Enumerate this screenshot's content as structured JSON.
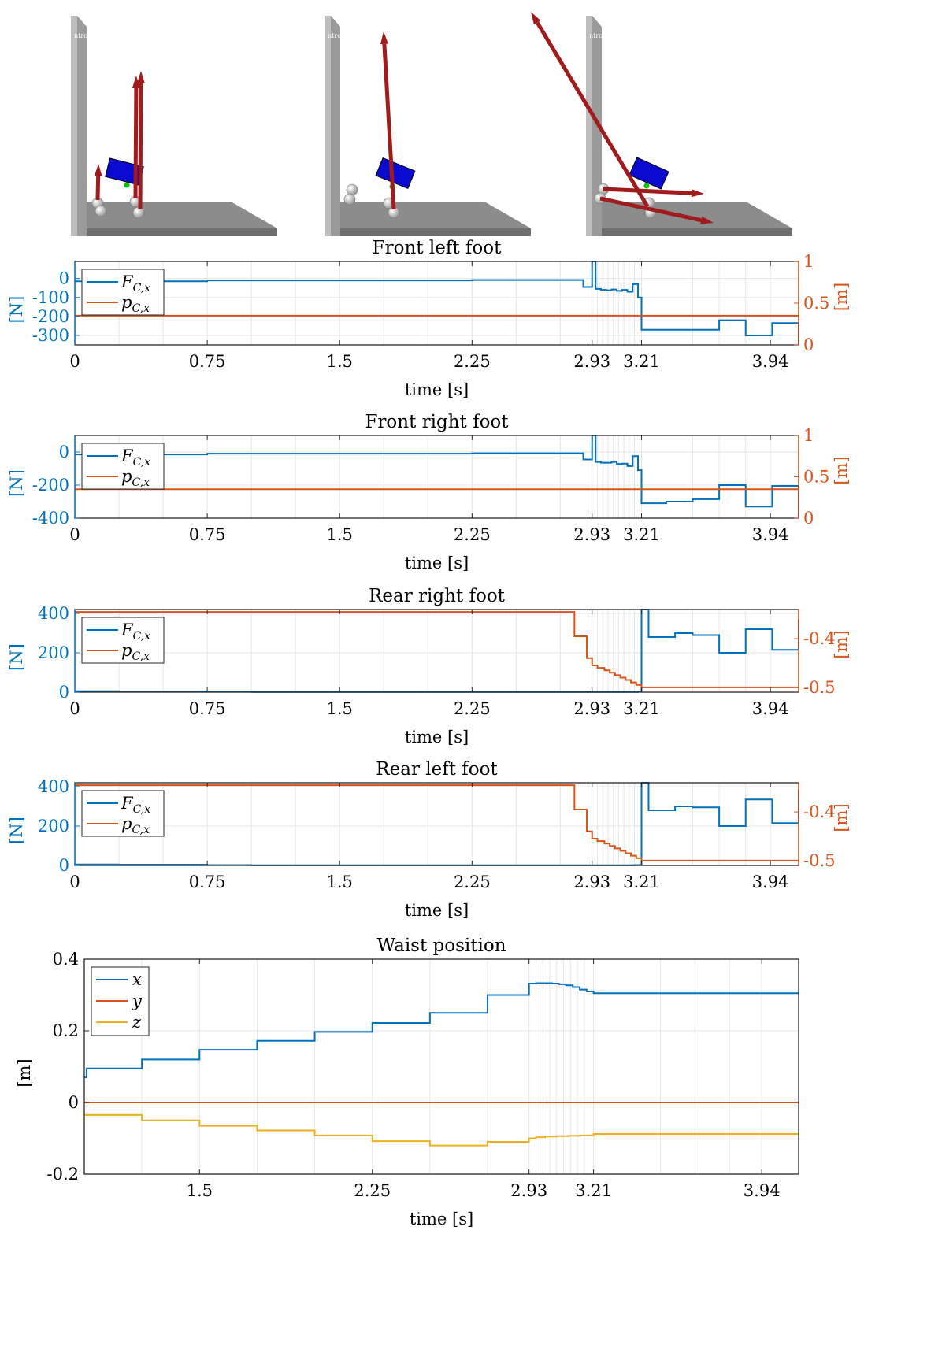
{
  "colors": {
    "blue": "#0072BD",
    "orange": "#D95319",
    "yellow": "#EDB120",
    "floor": "#8c8c8c",
    "wall": "#9a9a9a",
    "body": "#0a0ad0",
    "arrow": "#a01b1b",
    "feet": "#e8e8e8",
    "com": "#00c000"
  },
  "snapshots": [
    {
      "name": "snapshot-1",
      "wall_label": "ntro ROT"
    },
    {
      "name": "snapshot-2",
      "wall_label": "ntro ROT"
    },
    {
      "name": "snapshot-3",
      "wall_label": "ntro ROT"
    }
  ],
  "chart_data": [
    {
      "type": "line",
      "title": "Front left foot",
      "xlabel": "time [s]",
      "ylabel_left": "[N]",
      "ylabel_right": "[m]",
      "xlim": [
        0,
        4.1
      ],
      "xticks": [
        0,
        0.75,
        1.5,
        2.25,
        2.93,
        3.21,
        3.94
      ],
      "xtick_labels": [
        "0",
        "0.75",
        "1.5",
        "2.25",
        "2.93",
        "3.21",
        "3.94"
      ],
      "ylim_left": [
        -350,
        90
      ],
      "yticks_left": [
        0,
        -100,
        -200,
        -300
      ],
      "ytick_labels_left": [
        "0",
        "-100",
        "-200",
        "-300"
      ],
      "ylim_right": [
        0,
        1
      ],
      "yticks_right": [
        0,
        0.5,
        1
      ],
      "ytick_labels_right": [
        "0",
        "0.5",
        "1"
      ],
      "legend": {
        "location": "top-left",
        "entries": [
          "F_C,x",
          "p_C,x"
        ]
      },
      "series": [
        {
          "name": "F_C,x",
          "axis": "left",
          "color": "blue",
          "step": true,
          "x": [
            0,
            0.25,
            0.5,
            0.75,
            1.0,
            1.25,
            1.5,
            1.75,
            2.0,
            2.25,
            2.5,
            2.75,
            2.88,
            2.91,
            2.93,
            2.95,
            2.98,
            3.01,
            3.04,
            3.07,
            3.1,
            3.13,
            3.16,
            3.19,
            3.21,
            3.5,
            3.65,
            3.8,
            3.95,
            4.1
          ],
          "y": [
            -15,
            -15,
            -15,
            -10,
            -10,
            -10,
            -10,
            -10,
            -10,
            -8,
            -8,
            -8,
            -45,
            -45,
            90,
            -55,
            -60,
            -62,
            -58,
            -65,
            -60,
            -70,
            -30,
            -100,
            -270,
            -270,
            -220,
            -300,
            -235,
            -345
          ]
        },
        {
          "name": "p_C,x",
          "axis": "right",
          "color": "orange",
          "step": true,
          "x": [
            0,
            4.1
          ],
          "y": [
            0.35,
            0.35
          ]
        }
      ]
    },
    {
      "type": "line",
      "title": "Front right foot",
      "xlabel": "time [s]",
      "ylabel_left": "[N]",
      "ylabel_right": "[m]",
      "xlim": [
        0,
        4.1
      ],
      "xticks": [
        0,
        0.75,
        1.5,
        2.25,
        2.93,
        3.21,
        3.94
      ],
      "xtick_labels": [
        "0",
        "0.75",
        "1.5",
        "2.25",
        "2.93",
        "3.21",
        "3.94"
      ],
      "ylim_left": [
        -400,
        100
      ],
      "yticks_left": [
        0,
        -200,
        -400
      ],
      "ytick_labels_left": [
        "0",
        "-200",
        "-400"
      ],
      "ylim_right": [
        0,
        1
      ],
      "yticks_right": [
        0,
        0.5,
        1
      ],
      "ytick_labels_right": [
        "0",
        "0.5",
        "1"
      ],
      "legend": {
        "location": "top-left",
        "entries": [
          "F_C,x",
          "p_C,x"
        ]
      },
      "series": [
        {
          "name": "F_C,x",
          "axis": "left",
          "color": "blue",
          "step": true,
          "x": [
            0,
            0.25,
            0.5,
            0.75,
            1.0,
            1.25,
            1.5,
            1.75,
            2.0,
            2.25,
            2.5,
            2.75,
            2.88,
            2.91,
            2.93,
            2.95,
            2.98,
            3.01,
            3.04,
            3.07,
            3.1,
            3.13,
            3.16,
            3.19,
            3.21,
            3.35,
            3.5,
            3.65,
            3.8,
            3.95,
            4.1
          ],
          "y": [
            -15,
            -15,
            -15,
            -10,
            -10,
            -10,
            -10,
            -10,
            -10,
            -8,
            -8,
            -8,
            -45,
            -45,
            100,
            -60,
            -65,
            -65,
            -60,
            -72,
            -70,
            -85,
            -25,
            -110,
            -310,
            -300,
            -285,
            -200,
            -330,
            -205,
            -390
          ]
        },
        {
          "name": "p_C,x",
          "axis": "right",
          "color": "orange",
          "step": true,
          "x": [
            0,
            4.1
          ],
          "y": [
            0.35,
            0.35
          ]
        }
      ]
    },
    {
      "type": "line",
      "title": "Rear right foot",
      "xlabel": "time [s]",
      "ylabel_left": "[N]",
      "ylabel_right": "[m]",
      "xlim": [
        0,
        4.1
      ],
      "xticks": [
        0,
        0.75,
        1.5,
        2.25,
        2.93,
        3.21,
        3.94
      ],
      "xtick_labels": [
        "0",
        "0.75",
        "1.5",
        "2.25",
        "2.93",
        "3.21",
        "3.94"
      ],
      "ylim_left": [
        0,
        420
      ],
      "yticks_left": [
        0,
        200,
        400
      ],
      "ytick_labels_left": [
        "0",
        "200",
        "400"
      ],
      "ylim_right": [
        -0.51,
        -0.34
      ],
      "yticks_right": [
        -0.4,
        -0.5
      ],
      "ytick_labels_right": [
        "-0.4",
        "-0.5"
      ],
      "legend": {
        "location": "top-left",
        "entries": [
          "F_C,x",
          "p_C,x"
        ]
      },
      "series": [
        {
          "name": "F_C,x",
          "axis": "left",
          "color": "blue",
          "step": true,
          "x": [
            0,
            0.25,
            0.75,
            1.0,
            2.0,
            3.0,
            3.19,
            3.21,
            3.25,
            3.4,
            3.5,
            3.65,
            3.8,
            3.95,
            4.1
          ],
          "y": [
            5,
            4,
            2,
            1,
            1,
            1,
            2,
            420,
            280,
            300,
            290,
            200,
            320,
            215,
            370
          ]
        },
        {
          "name": "p_C,x",
          "axis": "right",
          "color": "orange",
          "step": true,
          "x": [
            0,
            2.75,
            2.83,
            2.9,
            2.93,
            2.96,
            3.0,
            3.03,
            3.06,
            3.09,
            3.12,
            3.15,
            3.18,
            3.21,
            4.1
          ],
          "y": [
            -0.345,
            -0.345,
            -0.395,
            -0.44,
            -0.455,
            -0.46,
            -0.465,
            -0.47,
            -0.475,
            -0.48,
            -0.485,
            -0.49,
            -0.495,
            -0.5,
            -0.5
          ]
        }
      ]
    },
    {
      "type": "line",
      "title": "Rear left foot",
      "xlabel": "time [s]",
      "ylabel_left": "[N]",
      "ylabel_right": "[m]",
      "xlim": [
        0,
        4.1
      ],
      "xticks": [
        0,
        0.75,
        1.5,
        2.25,
        2.93,
        3.21,
        3.94
      ],
      "xtick_labels": [
        "0",
        "0.75",
        "1.5",
        "2.25",
        "2.93",
        "3.21",
        "3.94"
      ],
      "ylim_left": [
        0,
        420
      ],
      "yticks_left": [
        0,
        200,
        400
      ],
      "ytick_labels_left": [
        "0",
        "200",
        "400"
      ],
      "ylim_right": [
        -0.51,
        -0.34
      ],
      "yticks_right": [
        -0.4,
        -0.5
      ],
      "ytick_labels_right": [
        "-0.4",
        "-0.5"
      ],
      "legend": {
        "location": "top-left",
        "entries": [
          "F_C,x",
          "p_C,x"
        ]
      },
      "series": [
        {
          "name": "F_C,x",
          "axis": "left",
          "color": "blue",
          "step": true,
          "x": [
            0,
            0.25,
            0.75,
            1.0,
            2.0,
            3.0,
            3.17,
            3.21,
            3.25,
            3.4,
            3.5,
            3.65,
            3.8,
            3.95,
            4.1
          ],
          "y": [
            5,
            4,
            2,
            1,
            1,
            1,
            2,
            420,
            280,
            300,
            295,
            200,
            335,
            215,
            385
          ]
        },
        {
          "name": "p_C,x",
          "axis": "right",
          "color": "orange",
          "step": true,
          "x": [
            0,
            2.75,
            2.83,
            2.9,
            2.93,
            2.96,
            3.0,
            3.03,
            3.06,
            3.09,
            3.12,
            3.15,
            3.18,
            3.21,
            4.1
          ],
          "y": [
            -0.345,
            -0.345,
            -0.395,
            -0.44,
            -0.455,
            -0.46,
            -0.465,
            -0.47,
            -0.475,
            -0.48,
            -0.485,
            -0.49,
            -0.495,
            -0.5,
            -0.5
          ]
        }
      ]
    },
    {
      "type": "line",
      "title": "Waist position",
      "xlabel": "time [s]",
      "ylabel": "[m]",
      "xlim": [
        1.0,
        4.1
      ],
      "xticks": [
        1.5,
        2.25,
        2.93,
        3.21,
        3.94
      ],
      "xtick_labels": [
        "1.5",
        "2.25",
        "2.93",
        "3.21",
        "3.94"
      ],
      "ylim": [
        -0.2,
        0.4
      ],
      "yticks": [
        0.4,
        0.2,
        0,
        -0.2
      ],
      "ytick_labels": [
        "0.4",
        "0.2",
        "0",
        "-0.2"
      ],
      "legend": {
        "location": "top-left",
        "entries": [
          "x",
          "y",
          "z"
        ]
      },
      "series": [
        {
          "name": "x",
          "color": "blue",
          "step": true,
          "x": [
            1.0,
            1.01,
            1.25,
            1.5,
            1.75,
            2.0,
            2.25,
            2.5,
            2.75,
            2.93,
            2.96,
            3.0,
            3.03,
            3.06,
            3.09,
            3.12,
            3.15,
            3.18,
            3.21,
            4.1
          ],
          "y": [
            0.07,
            0.095,
            0.12,
            0.147,
            0.172,
            0.197,
            0.222,
            0.25,
            0.3,
            0.332,
            0.333,
            0.333,
            0.332,
            0.33,
            0.327,
            0.322,
            0.315,
            0.31,
            0.305,
            0.305
          ]
        },
        {
          "name": "y",
          "color": "orange",
          "step": true,
          "x": [
            1.0,
            4.1
          ],
          "y": [
            0,
            0
          ]
        },
        {
          "name": "z",
          "color": "yellow",
          "step": true,
          "x": [
            1.0,
            1.25,
            1.5,
            1.75,
            2.0,
            2.25,
            2.5,
            2.75,
            2.93,
            2.96,
            3.0,
            3.05,
            3.1,
            3.15,
            3.21,
            4.1
          ],
          "y": [
            -0.035,
            -0.05,
            -0.065,
            -0.078,
            -0.092,
            -0.108,
            -0.12,
            -0.11,
            -0.1,
            -0.097,
            -0.095,
            -0.094,
            -0.093,
            -0.092,
            -0.088,
            -0.088
          ]
        }
      ]
    }
  ]
}
